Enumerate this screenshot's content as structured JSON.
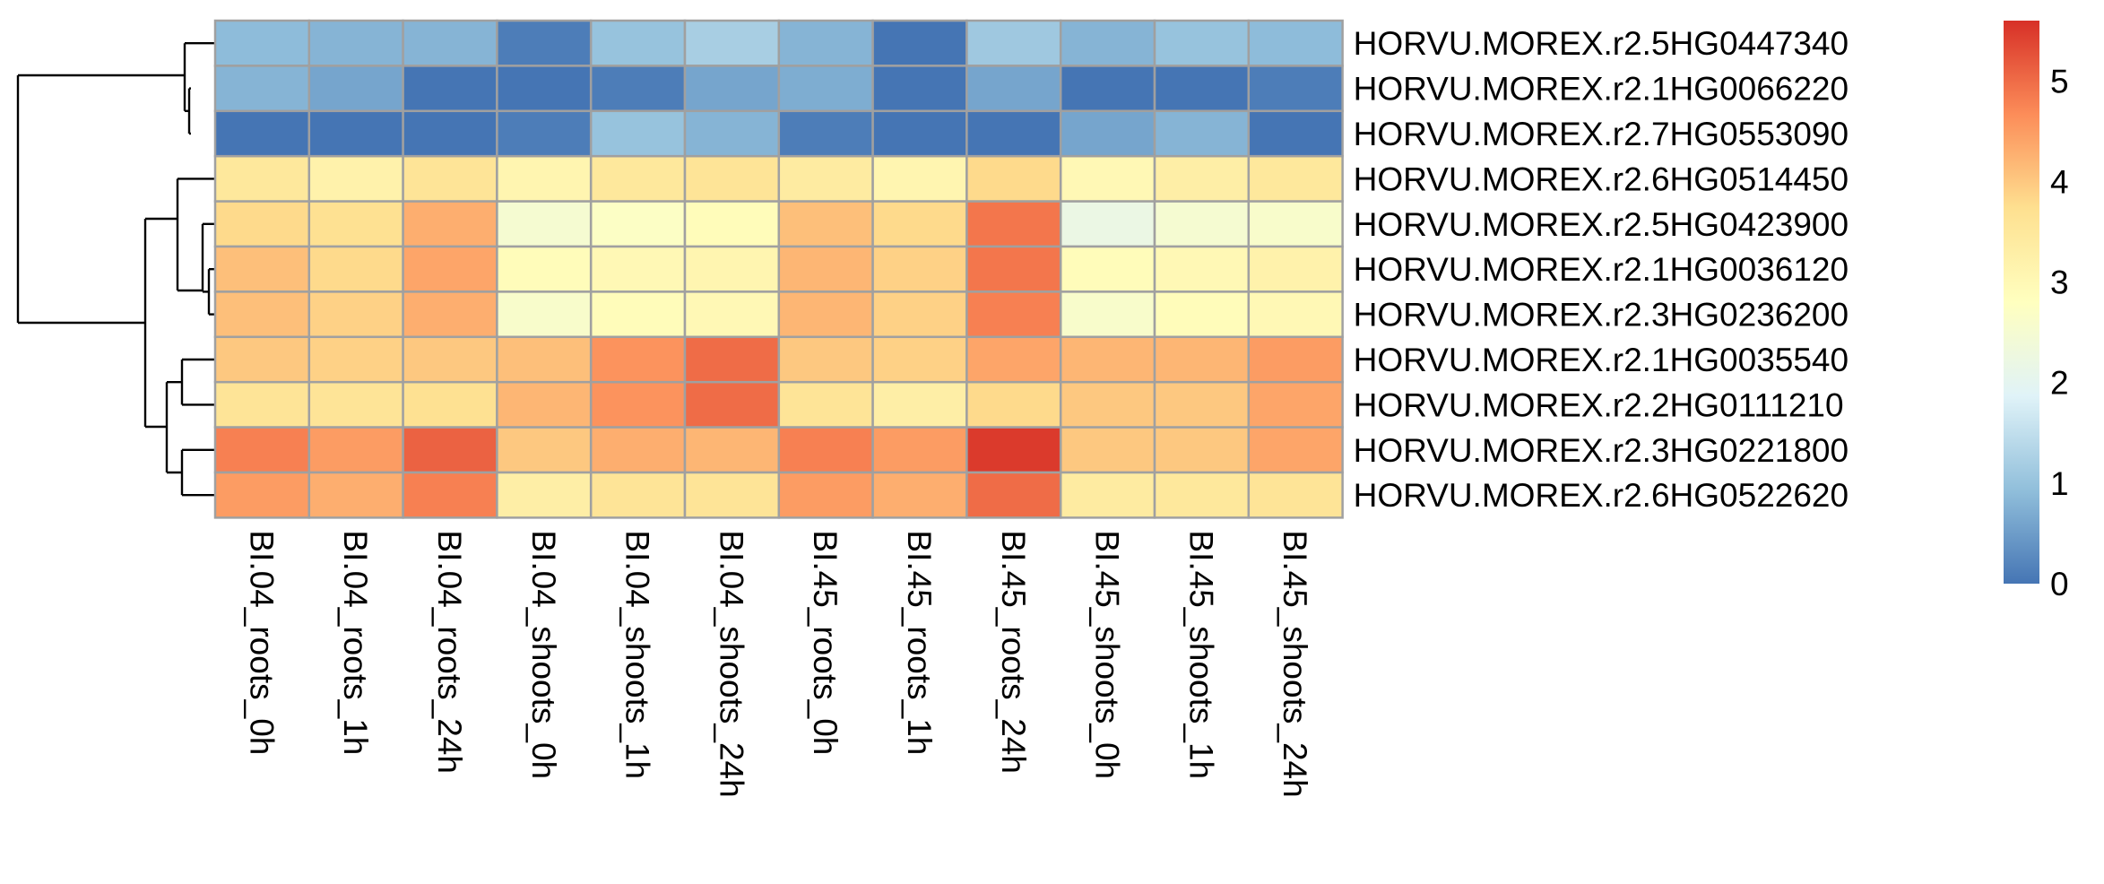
{
  "chart_data": {
    "type": "heatmap",
    "title": "",
    "xlabel": "",
    "ylabel": "",
    "columns": [
      "BI.04_roots_0h",
      "BI.04_roots_1h",
      "BI.04_roots_24h",
      "BI.04_shoots_0h",
      "BI.04_shoots_1h",
      "BI.04_shoots_24h",
      "BI.45_roots_0h",
      "BI.45_roots_1h",
      "BI.45_roots_24h",
      "BI.45_shoots_0h",
      "BI.45_shoots_1h",
      "BI.45_shoots_24h"
    ],
    "rows": [
      "HORVU.MOREX.r2.5HG0447340",
      "HORVU.MOREX.r2.1HG0066220",
      "HORVU.MOREX.r2.7HG0553090",
      "HORVU.MOREX.r2.6HG0514450",
      "HORVU.MOREX.r2.5HG0423900",
      "HORVU.MOREX.r2.1HG0036120",
      "HORVU.MOREX.r2.3HG0236200",
      "HORVU.MOREX.r2.1HG0035540",
      "HORVU.MOREX.r2.2HG0111210",
      "HORVU.MOREX.r2.3HG0221800",
      "HORVU.MOREX.r2.6HG0522620"
    ],
    "values": [
      [
        0.9,
        0.8,
        0.8,
        0.1,
        1.0,
        1.2,
        0.8,
        0.0,
        1.1,
        0.8,
        1.0,
        0.9
      ],
      [
        0.8,
        0.6,
        0.0,
        0.0,
        0.1,
        0.6,
        0.7,
        0.0,
        0.6,
        0.0,
        0.0,
        0.1
      ],
      [
        0.0,
        0.0,
        0.0,
        0.1,
        1.0,
        0.8,
        0.1,
        0.0,
        0.0,
        0.6,
        0.8,
        0.0
      ],
      [
        3.5,
        3.2,
        3.6,
        3.1,
        3.5,
        3.6,
        3.4,
        3.1,
        3.8,
        3.0,
        3.3,
        3.5
      ],
      [
        3.8,
        3.7,
        4.3,
        2.5,
        2.7,
        2.9,
        4.1,
        3.8,
        4.9,
        2.2,
        2.5,
        2.6
      ],
      [
        4.1,
        3.8,
        4.4,
        2.9,
        3.0,
        3.1,
        4.2,
        3.9,
        4.9,
        2.9,
        3.0,
        3.2
      ],
      [
        4.1,
        3.9,
        4.3,
        2.6,
        2.9,
        3.0,
        4.2,
        3.9,
        4.8,
        2.6,
        2.9,
        3.0
      ],
      [
        4.0,
        3.9,
        4.0,
        4.1,
        4.6,
        5.0,
        4.0,
        3.9,
        4.4,
        4.2,
        4.2,
        4.5
      ],
      [
        3.6,
        3.6,
        3.7,
        4.2,
        4.6,
        5.0,
        3.6,
        3.3,
        3.8,
        4.0,
        4.0,
        4.4
      ],
      [
        4.8,
        4.5,
        5.1,
        4.0,
        4.3,
        4.2,
        4.8,
        4.5,
        5.5,
        4.0,
        4.0,
        4.4
      ],
      [
        4.5,
        4.3,
        4.8,
        3.3,
        3.6,
        3.6,
        4.5,
        4.3,
        5.0,
        3.4,
        3.5,
        3.6
      ]
    ],
    "color_scale": {
      "min": 0,
      "max": 5.6,
      "stops": [
        "#4575B4",
        "#91BFDB",
        "#E0F3F8",
        "#FFFFBF",
        "#FEE090",
        "#FC8D59",
        "#D73027"
      ]
    },
    "colorbar_ticks": [
      0,
      1,
      2,
      3,
      4,
      5
    ],
    "cell_border_color": "#A0A0A0",
    "grid": true
  }
}
